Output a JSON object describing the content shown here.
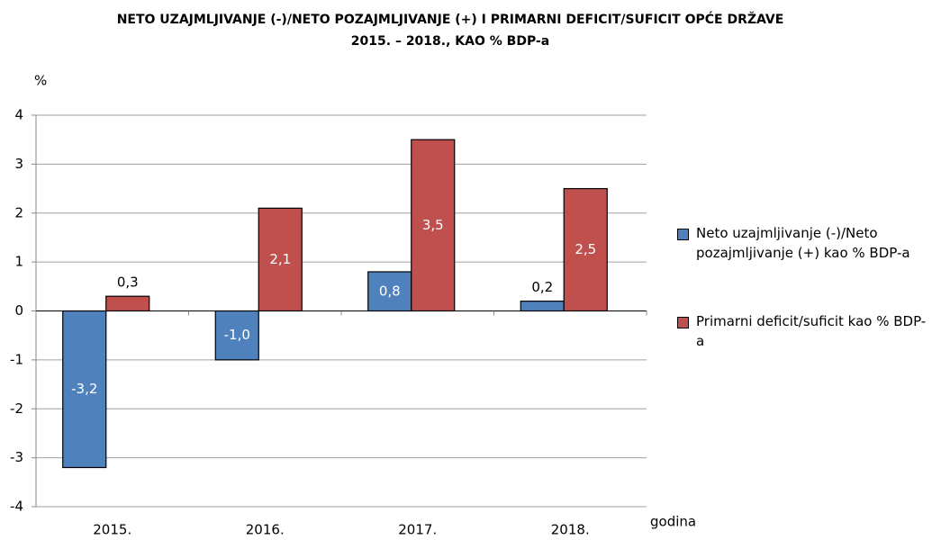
{
  "chart_data": {
    "type": "bar",
    "title": [
      "NETO UZAJMLJIVANJE (-)/NETO POZAJMLJIVANJE (+) I PRIMARNI DEFICIT/SUFICIT OPĆE DRŽAVE",
      "2015.  –  2018., KAO % BDP-a"
    ],
    "y_label": "%",
    "x_label": "godina",
    "categories": [
      "2015.",
      "2016.",
      "2017.",
      "2018."
    ],
    "series": [
      {
        "name": "Neto uzajmljivanje (-)/Neto pozajmljivanje (+) kao % BDP-a",
        "color": "#4f81bd",
        "values": [
          -3.2,
          -1.0,
          0.8,
          0.2
        ],
        "value_labels": [
          "-3,2",
          "-1,0",
          "0,8",
          "0,2"
        ]
      },
      {
        "name": "Primarni deficit/suficit kao % BDP-a",
        "color": "#c0504d",
        "values": [
          0.3,
          2.1,
          3.5,
          2.5
        ],
        "value_labels": [
          "0,3",
          "2,1",
          "3,5",
          "2,5"
        ]
      }
    ],
    "ylim": [
      -4,
      4
    ],
    "yticks": [
      -4,
      -3,
      -2,
      -1,
      0,
      1,
      2,
      3,
      4
    ],
    "grid": true,
    "legend": "right"
  }
}
